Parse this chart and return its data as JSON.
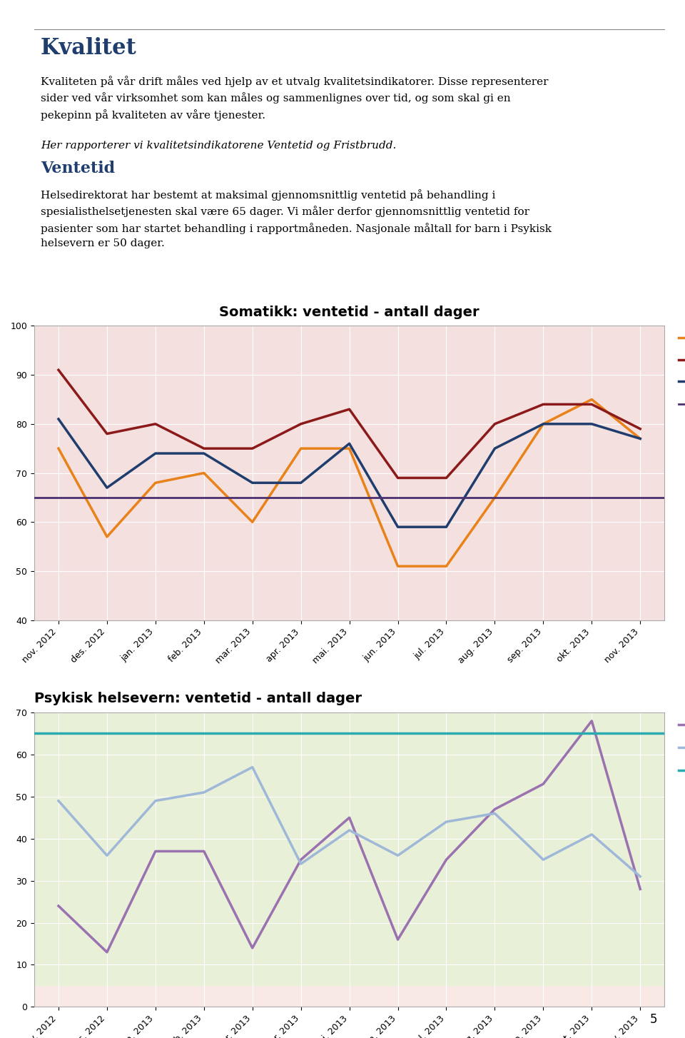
{
  "page_title": "Kvalitet",
  "page_text1": "Kvaliteten på vår drift måles ved hjelp av et utvalg kvalitetsindikatorer. Disse representerer\nsider ved vår virksomhet som kan måles og sammenlignes over tid, og som skal gi en\npekepinn på kvaliteten av våre tjenester.",
  "page_text2_prefix": "Her rapporterer vi kvalitetsindikatorene ",
  "page_text2_italic": "Ventetid",
  "page_text2_mid": " og ",
  "page_text2_italic2": "Fristbrudd",
  "page_text2_suffix": ".",
  "section_title": "Ventetid",
  "section_text": "Helsedirektorat har bestemt at maksimal gjennomsnittlig ventetid på behandling i\nspesialisthelsetjenesten skal være 65 dager. Vi måler derfor gjennomsnittlig ventetid for\npasienter som har startet behandling i rapportmåneden. Nasjonale måltall for barn i Psykisk\nhelsevern er 50 dager.",
  "x_labels": [
    "nov. 2012",
    "des. 2012",
    "jan. 2013",
    "feb. 2013",
    "mar. 2013",
    "apr. 2013",
    "mai. 2013",
    "jun. 2013",
    "jul. 2013",
    "aug. 2013",
    "sep. 2013",
    "okt. 2013",
    "nov. 2013"
  ],
  "chart1_title": "Somatikk: ventetid - antall dager",
  "chart1_ylim": [
    40,
    100
  ],
  "chart1_yticks": [
    40,
    50,
    60,
    70,
    80,
    90,
    100
  ],
  "chart1_bg": "#f5e0e0",
  "chart1_kirkenes": [
    75,
    57,
    68,
    70,
    60,
    75,
    75,
    51,
    51,
    65,
    80,
    85,
    77
  ],
  "chart1_hammerfest": [
    91,
    78,
    80,
    75,
    75,
    80,
    83,
    69,
    69,
    80,
    84,
    84,
    79
  ],
  "chart1_finnmark": [
    81,
    67,
    74,
    74,
    68,
    68,
    76,
    59,
    59,
    75,
    80,
    80,
    77
  ],
  "chart1_nasjonalt": 65,
  "chart1_color_kirkenes": "#E8821A",
  "chart1_color_hammerfest": "#8B1A1A",
  "chart1_color_finnmark": "#1F3E6E",
  "chart1_color_nasjonalt": "#4B3070",
  "chart2_title": "Psykisk helsevern: ventetid - antall dager",
  "chart2_ylim": [
    0,
    70
  ],
  "chart2_yticks": [
    0,
    10,
    20,
    30,
    40,
    50,
    60,
    70
  ],
  "chart2_bg": "#e8f0d8",
  "chart2_rus": [
    24,
    13,
    37,
    37,
    14,
    35,
    45,
    16,
    35,
    47,
    53,
    68,
    28
  ],
  "chart2_voksne": [
    49,
    36,
    49,
    51,
    57,
    34,
    42,
    36,
    44,
    46,
    35,
    41,
    31
  ],
  "chart2_nasjonalt": 65,
  "chart2_color_rus": "#9B72B0",
  "chart2_color_voksne": "#A0B8D8",
  "chart2_color_nasjonalt": "#2AABB0",
  "chart2_pink_bg": "#fce8e8",
  "footer_num": "5"
}
